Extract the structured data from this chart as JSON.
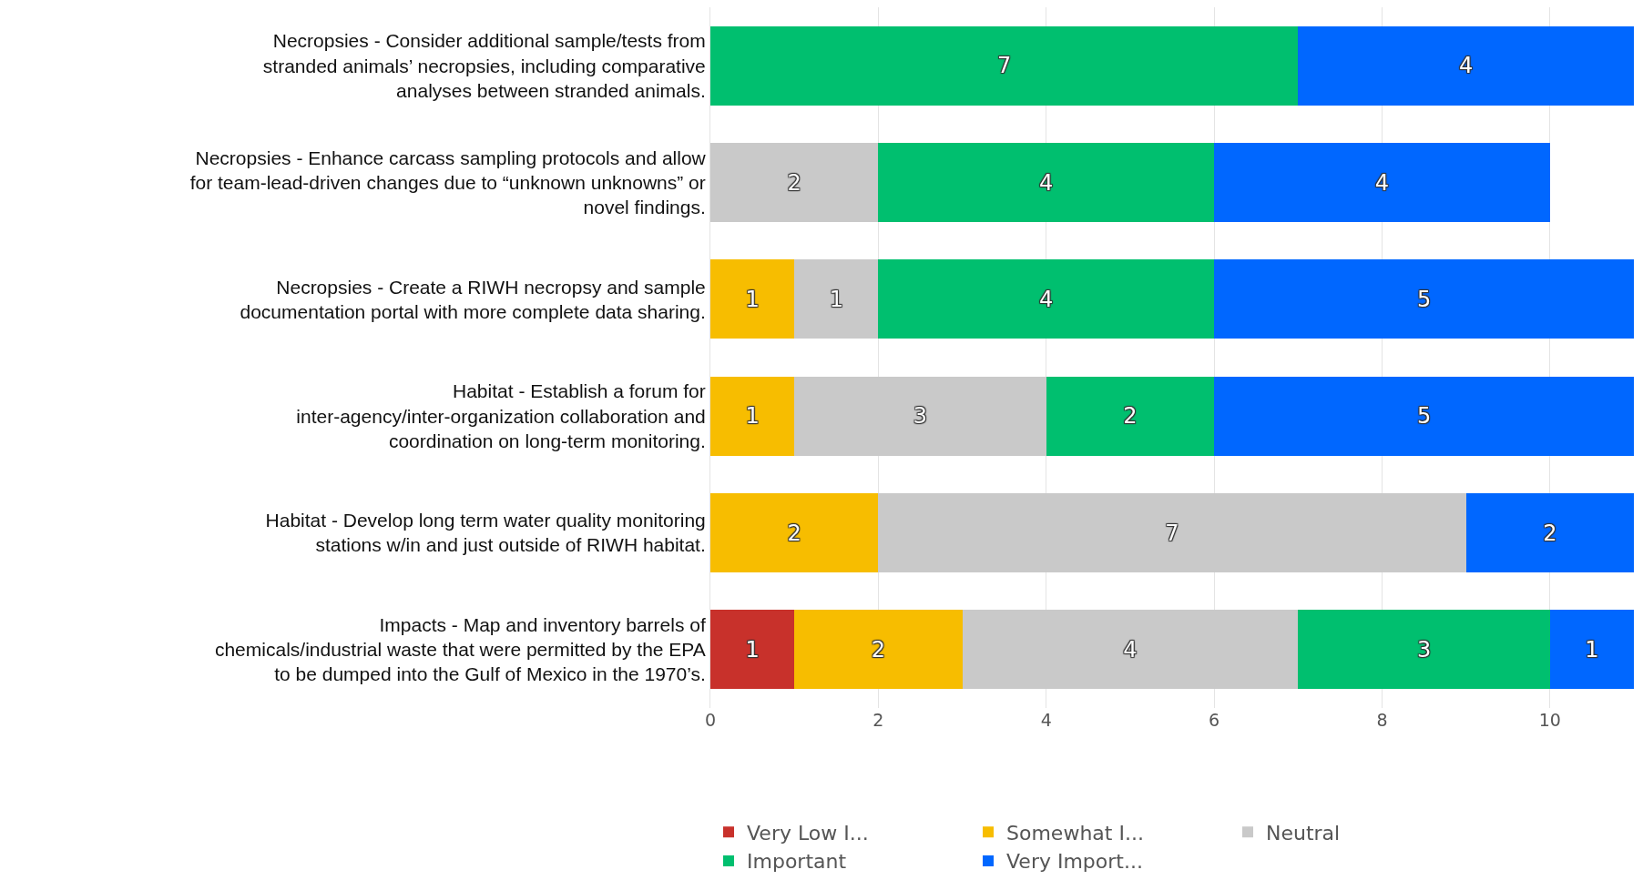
{
  "chart_data": {
    "type": "bar",
    "orientation": "horizontal",
    "stacked": true,
    "data_labels": true,
    "grid": "x",
    "legend": "bottom",
    "categories": [
      "Necropsies - Consider additional sample/tests from stranded animals’ necropsies, including comparative analyses between stranded animals.",
      "Necropsies - Enhance carcass sampling protocols and allow for team-lead-driven changes due to “unknown unknowns” or novel findings.",
      "Necropsies - Create a RIWH necropsy and sample documentation portal with more complete data sharing.",
      "Habitat - Establish a forum for inter-agency/inter-organization collaboration and coordination on long-term monitoring.",
      "Habitat - Develop long term water quality monitoring stations w/in and just outside of RIWH habitat.",
      "Impacts - Map and inventory barrels of chemicals/industrial waste that were permitted by the EPA to be dumped into the Gulf of Mexico in the 1970’s."
    ],
    "series": [
      {
        "name": "Very Low I...",
        "color": "#c8312b",
        "values": [
          null,
          null,
          null,
          null,
          null,
          1
        ]
      },
      {
        "name": "Somewhat I...",
        "color": "#f7bd00",
        "values": [
          null,
          null,
          1,
          1,
          2,
          2
        ]
      },
      {
        "name": "Neutral",
        "color": "#c9c9c9",
        "values": [
          null,
          2,
          1,
          3,
          7,
          4
        ]
      },
      {
        "name": "Important",
        "color": "#00bf6f",
        "values": [
          7,
          4,
          4,
          2,
          null,
          3
        ]
      },
      {
        "name": "Very Import...",
        "color": "#0067ff",
        "values": [
          4,
          4,
          5,
          5,
          2,
          1
        ]
      }
    ],
    "xlim": [
      0,
      11
    ],
    "xticks": [
      0,
      2,
      4,
      6,
      8,
      10
    ]
  }
}
